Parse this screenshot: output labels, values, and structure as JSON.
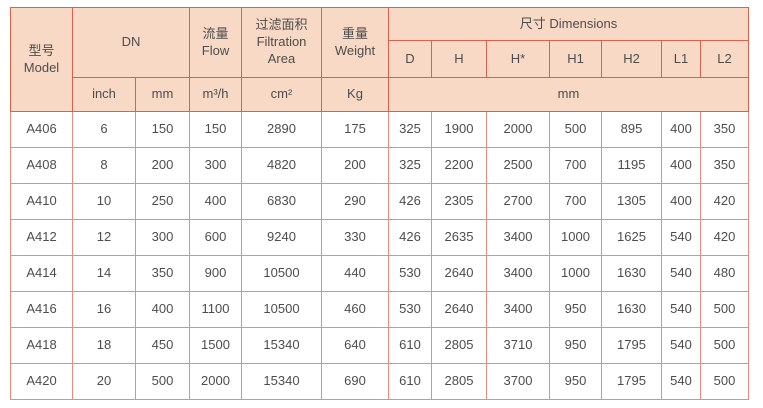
{
  "colors": {
    "header_background": "#f8d9c5",
    "header_border": "#dc604a",
    "grid_border": "#ec8b7d",
    "text": "#4d4d4d",
    "page_background": "#ffffff"
  },
  "table": {
    "header": {
      "model": "型号 Model",
      "dn": "DN",
      "flow": "流量 Flow",
      "filtration_area": "过滤面积 Filtration Area",
      "weight": "重量 Weight",
      "dimensions": "尺寸 Dimensions",
      "dim_cols": [
        "D",
        "H",
        "H*",
        "H1",
        "H2",
        "L1",
        "L2"
      ],
      "units": {
        "inch": "inch",
        "mm": "mm",
        "flow": "m³/h",
        "area": "cm²",
        "weight": "Kg",
        "dims_mm": "mm"
      }
    },
    "rows": [
      [
        "A406",
        "6",
        "150",
        "150",
        "2890",
        "175",
        "325",
        "1900",
        "2000",
        "500",
        "895",
        "400",
        "350"
      ],
      [
        "A408",
        "8",
        "200",
        "300",
        "4820",
        "200",
        "325",
        "2200",
        "2500",
        "700",
        "1195",
        "400",
        "350"
      ],
      [
        "A410",
        "10",
        "250",
        "400",
        "6830",
        "290",
        "426",
        "2305",
        "2700",
        "700",
        "1305",
        "400",
        "420"
      ],
      [
        "A412",
        "12",
        "300",
        "600",
        "9240",
        "330",
        "426",
        "2635",
        "3400",
        "1000",
        "1625",
        "540",
        "420"
      ],
      [
        "A414",
        "14",
        "350",
        "900",
        "10500",
        "440",
        "530",
        "2640",
        "3400",
        "1000",
        "1630",
        "540",
        "480"
      ],
      [
        "A416",
        "16",
        "400",
        "1100",
        "10500",
        "460",
        "530",
        "2640",
        "3400",
        "950",
        "1630",
        "540",
        "500"
      ],
      [
        "A418",
        "18",
        "450",
        "1500",
        "15340",
        "640",
        "610",
        "2805",
        "3710",
        "950",
        "1795",
        "540",
        "500"
      ],
      [
        "A420",
        "20",
        "500",
        "2000",
        "15340",
        "690",
        "610",
        "2805",
        "3700",
        "950",
        "1795",
        "540",
        "500"
      ]
    ]
  }
}
